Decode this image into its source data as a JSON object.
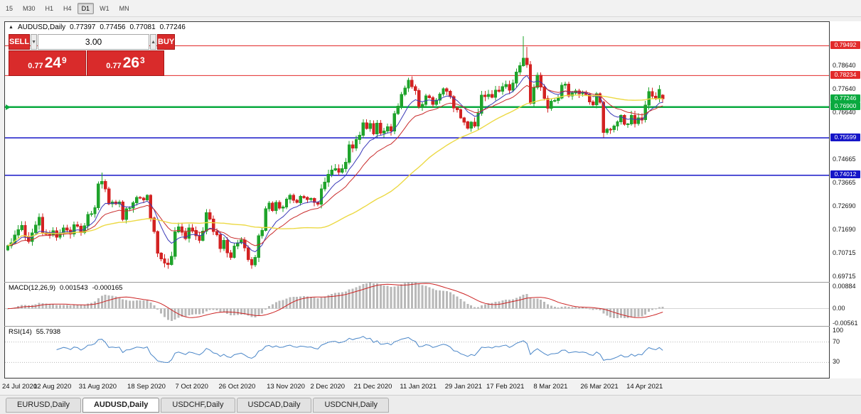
{
  "icons": {
    "arrow_up": "▲",
    "arrow_down": "▼",
    "symbol_marker": "▲"
  },
  "toolbar": {
    "timeframes": [
      {
        "label": "15",
        "active": false
      },
      {
        "label": "M30",
        "active": false
      },
      {
        "label": "H1",
        "active": false
      },
      {
        "label": "H4",
        "active": false
      },
      {
        "label": "D1",
        "active": true
      },
      {
        "label": "W1",
        "active": false
      },
      {
        "label": "MN",
        "active": false
      }
    ]
  },
  "header": {
    "symbol": "AUDUSD,Daily",
    "open": "0.77397",
    "high": "0.77456",
    "low": "0.77081",
    "close": "0.77246"
  },
  "trade_panel": {
    "sell_label": "SELL",
    "buy_label": "BUY",
    "volume": "3.00",
    "red": "#d92b2b",
    "sell_price": {
      "small": "0.77",
      "big": "24",
      "sup": "9"
    },
    "buy_price": {
      "small": "0.77",
      "big": "26",
      "sup": "3"
    }
  },
  "chart_data": {
    "type": "candlestick",
    "symbol": "AUDUSD",
    "timeframe": "Daily",
    "up_color": "#1fa32b",
    "down_color": "#d32222",
    "price_axis": {
      "min": 0.695,
      "max": 0.805,
      "ticks": [
        {
          "value": 0.7864,
          "label": "0.78640"
        },
        {
          "value": 0.7764,
          "label": "0.77640"
        },
        {
          "value": 0.7664,
          "label": "0.76640"
        },
        {
          "value": 0.74665,
          "label": "0.74665"
        },
        {
          "value": 0.73665,
          "label": "0.73665"
        },
        {
          "value": 0.7269,
          "label": "0.72690"
        },
        {
          "value": 0.7169,
          "label": "0.71690"
        },
        {
          "value": 0.70715,
          "label": "0.70715"
        },
        {
          "value": 0.69715,
          "label": "0.69715"
        }
      ],
      "badges": [
        {
          "value": 0.79492,
          "label": "0.79492",
          "color": "#e22a2a"
        },
        {
          "value": 0.78234,
          "label": "0.78234",
          "color": "#e22a2a"
        },
        {
          "value": 0.77246,
          "label": "0.77246",
          "color": "#0aa93f"
        },
        {
          "value": 0.769,
          "label": "0.76900",
          "color": "#0aa93f"
        },
        {
          "value": 0.75599,
          "label": "0.75599",
          "color": "#1616c8"
        },
        {
          "value": 0.74012,
          "label": "0.74012",
          "color": "#1616c8"
        }
      ]
    },
    "hlines": [
      {
        "value": 0.79492,
        "color": "#e22a2a",
        "w": 1
      },
      {
        "value": 0.78234,
        "color": "#e22a2a",
        "w": 1
      },
      {
        "value": 0.769,
        "color": "#0aa93f",
        "w": 2.5
      },
      {
        "value": 0.75599,
        "color": "#1616c8",
        "w": 1.5
      },
      {
        "value": 0.74012,
        "color": "#1616c8",
        "w": 1.5
      }
    ],
    "first_open": 0.7085,
    "closes": [
      0.7104,
      0.7115,
      0.7149,
      0.7171,
      0.7189,
      0.7143,
      0.7121,
      0.7158,
      0.719,
      0.7223,
      0.7157,
      0.7152,
      0.7148,
      0.7166,
      0.714,
      0.7158,
      0.7178,
      0.717,
      0.7153,
      0.7192,
      0.7186,
      0.7159,
      0.7187,
      0.7236,
      0.7239,
      0.7264,
      0.7365,
      0.7375,
      0.7343,
      0.728,
      0.7288,
      0.7281,
      0.7288,
      0.7215,
      0.726,
      0.7262,
      0.7285,
      0.7308,
      0.7305,
      0.7297,
      0.7316,
      0.7221,
      0.7163,
      0.7072,
      0.7048,
      0.703,
      0.7024,
      0.7058,
      0.7162,
      0.7183,
      0.7161,
      0.7134,
      0.7178,
      0.7168,
      0.7146,
      0.7126,
      0.7165,
      0.7243,
      0.7216,
      0.7163,
      0.715,
      0.7091,
      0.7126,
      0.7073,
      0.7054,
      0.7102,
      0.7115,
      0.7128,
      0.7094,
      0.7044,
      0.7022,
      0.7053,
      0.7145,
      0.7168,
      0.726,
      0.7283,
      0.7252,
      0.7287,
      0.7262,
      0.7267,
      0.73,
      0.7317,
      0.7295,
      0.7286,
      0.7312,
      0.7307,
      0.7298,
      0.7303,
      0.7287,
      0.7279,
      0.7344,
      0.7373,
      0.7406,
      0.7424,
      0.743,
      0.7415,
      0.743,
      0.7457,
      0.753,
      0.7516,
      0.7553,
      0.757,
      0.7623,
      0.76,
      0.762,
      0.7577,
      0.7622,
      0.758,
      0.7589,
      0.7607,
      0.7588,
      0.7662,
      0.7694,
      0.7743,
      0.777,
      0.7804,
      0.7776,
      0.776,
      0.7693,
      0.7701,
      0.7737,
      0.773,
      0.7702,
      0.772,
      0.7745,
      0.7767,
      0.7757,
      0.7735,
      0.7687,
      0.7679,
      0.7644,
      0.7627,
      0.7601,
      0.7626,
      0.761,
      0.7664,
      0.774,
      0.7734,
      0.7744,
      0.7732,
      0.7762,
      0.7757,
      0.7776,
      0.7786,
      0.7762,
      0.7791,
      0.7838,
      0.7865,
      0.7897,
      0.787,
      0.7706,
      0.7773,
      0.7824,
      0.7775,
      0.7727,
      0.7685,
      0.7715,
      0.7718,
      0.7729,
      0.7783,
      0.7787,
      0.7737,
      0.7749,
      0.7758,
      0.7746,
      0.7752,
      0.7743,
      0.7712,
      0.77,
      0.7746,
      0.771,
      0.7583,
      0.7596,
      0.7594,
      0.761,
      0.7628,
      0.7655,
      0.7617,
      0.7619,
      0.7655,
      0.762,
      0.7645,
      0.7636,
      0.7698,
      0.7755,
      0.7736,
      0.7725,
      0.7765,
      0.77246
    ],
    "overrides": {
      "27": {
        "h": 0.7413
      },
      "46": {
        "l": 0.7006
      },
      "116": {
        "h": 0.782
      },
      "148": {
        "h": 0.799
      },
      "149": {
        "h": 0.7945
      },
      "171": {
        "l": 0.7562
      },
      "188": {
        "o": 0.77397,
        "h": 0.77456,
        "l": 0.77081,
        "c": 0.77246
      }
    },
    "moving_averages": [
      {
        "type": "ema",
        "period": 9,
        "color": "#3a3ab8",
        "width": 1
      },
      {
        "type": "ema",
        "period": 18,
        "color": "#c92b2b",
        "width": 1
      },
      {
        "type": "sma",
        "period": 50,
        "color": "#ecd944",
        "width": 1.4
      }
    ],
    "date_ticks": [
      {
        "i": 0,
        "label": "24 Jul 2020"
      },
      {
        "i": 13,
        "label": "12 Aug 2020"
      },
      {
        "i": 26,
        "label": "31 Aug 2020"
      },
      {
        "i": 40,
        "label": "18 Sep 2020"
      },
      {
        "i": 53,
        "label": "7 Oct 2020"
      },
      {
        "i": 66,
        "label": "26 Oct 2020"
      },
      {
        "i": 80,
        "label": "13 Nov 2020"
      },
      {
        "i": 92,
        "label": "2 Dec 2020"
      },
      {
        "i": 105,
        "label": "21 Dec 2020"
      },
      {
        "i": 118,
        "label": "11 Jan 2021"
      },
      {
        "i": 131,
        "label": "29 Jan 2021"
      },
      {
        "i": 143,
        "label": "17 Feb 2021"
      },
      {
        "i": 156,
        "label": "8 Mar 2021"
      },
      {
        "i": 170,
        "label": "26 Mar 2021"
      },
      {
        "i": 183,
        "label": "14 Apr 2021"
      }
    ],
    "macd": {
      "label": "MACD(12,26,9)",
      "value_main": "0.001543",
      "value_signal": "-0.000165",
      "fast": 12,
      "slow": 26,
      "signal": 9,
      "range": {
        "min": -0.0063,
        "max": 0.0094
      },
      "axis": [
        {
          "value": 0.00884,
          "label": "0.00884"
        },
        {
          "value": 0,
          "label": "0.00"
        },
        {
          "value": -0.00561,
          "label": "-0.00561"
        }
      ],
      "bar_color": "#b9b9b9",
      "signal_color": "#cc2222"
    },
    "rsi": {
      "label": "RSI(14)",
      "value": "55.7938",
      "period": 14,
      "levels": [
        70,
        30
      ],
      "axis": [
        {
          "value": 100,
          "label": "100"
        },
        {
          "value": 70,
          "label": "70"
        },
        {
          "value": 30,
          "label": "30"
        }
      ],
      "line_color": "#4a86c8"
    }
  },
  "tabs": [
    {
      "label": "EURUSD,Daily",
      "active": false
    },
    {
      "label": "AUDUSD,Daily",
      "active": true
    },
    {
      "label": "USDCHF,Daily",
      "active": false
    },
    {
      "label": "USDCAD,Daily",
      "active": false
    },
    {
      "label": "USDCNH,Daily",
      "active": false
    }
  ]
}
